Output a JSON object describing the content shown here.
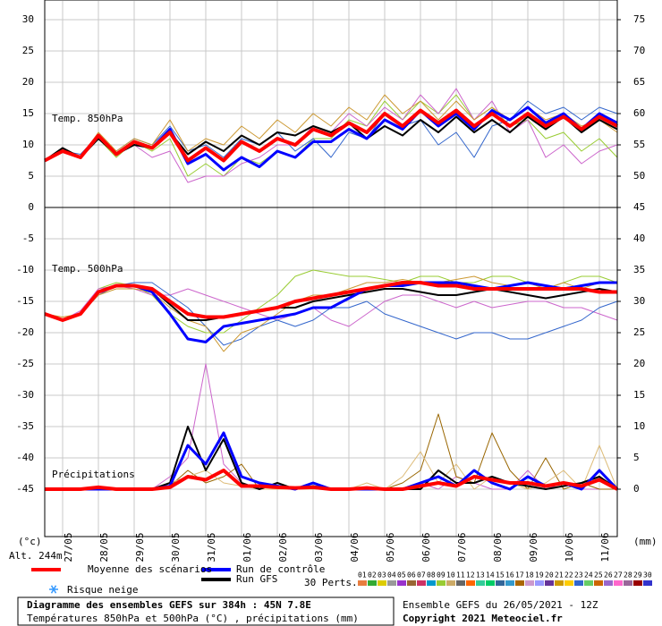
{
  "chart_data": {
    "type": "line",
    "y_unit_left": "(°c)",
    "y_unit_right": "(mm)",
    "altitude": "Alt. 244m",
    "xlim": [
      0,
      384
    ],
    "x": [
      0,
      12,
      24,
      36,
      48,
      60,
      72,
      84,
      96,
      108,
      120,
      132,
      144,
      156,
      168,
      180,
      192,
      204,
      216,
      228,
      240,
      252,
      264,
      276,
      288,
      300,
      312,
      324,
      336,
      348,
      360,
      372,
      384
    ],
    "xticks": [
      {
        "value": 12,
        "label": "27/05"
      },
      {
        "value": 36,
        "label": "28/05"
      },
      {
        "value": 60,
        "label": "29/05"
      },
      {
        "value": 84,
        "label": "30/05"
      },
      {
        "value": 108,
        "label": "31/05"
      },
      {
        "value": 132,
        "label": "01/06"
      },
      {
        "value": 156,
        "label": "02/06"
      },
      {
        "value": 180,
        "label": "03/06"
      },
      {
        "value": 204,
        "label": "04/06"
      },
      {
        "value": 228,
        "label": "05/06"
      },
      {
        "value": 252,
        "label": "06/06"
      },
      {
        "value": 276,
        "label": "07/06"
      },
      {
        "value": 300,
        "label": "08/06"
      },
      {
        "value": 324,
        "label": "09/06"
      },
      {
        "value": 348,
        "label": "10/06"
      },
      {
        "value": 372,
        "label": "11/06"
      }
    ],
    "ylim": [
      -52.5,
      33
    ],
    "yticks": [
      30,
      25,
      20,
      15,
      10,
      5,
      0,
      -5,
      -10,
      -15,
      -20,
      -25,
      -30,
      -35,
      -40,
      -45
    ],
    "y2lim": [
      -7.5,
      78
    ],
    "y2ticks": [
      75,
      70,
      65,
      60,
      55,
      50,
      45,
      40,
      35,
      30,
      25,
      20,
      15,
      10,
      5,
      0
    ],
    "grid": true,
    "panels": [
      {
        "label": "Temp. 850hPa",
        "series": [
          {
            "color": "#99cc33",
            "values": [
              7.5,
              9,
              8,
              11,
              8,
              10.5,
              9,
              11,
              5,
              7,
              5,
              8,
              7,
              9,
              8,
              11,
              11,
              14,
              13,
              17,
              14,
              17,
              15,
              18,
              14,
              16,
              13,
              14,
              11,
              12,
              9,
              11,
              8
            ]
          },
          {
            "color": "#cc66cc",
            "values": [
              7.5,
              9,
              8,
              11.5,
              8.5,
              10,
              8,
              9,
              4,
              5,
              5,
              7,
              8,
              10,
              10,
              13,
              12,
              15,
              13,
              16,
              14,
              18,
              15,
              19,
              14,
              17,
              12,
              14,
              8,
              10,
              7,
              9,
              10
            ]
          },
          {
            "color": "#3366cc",
            "values": [
              7.5,
              9,
              8.5,
              11.5,
              9,
              11,
              10,
              13,
              9,
              10,
              8,
              11,
              10,
              12,
              9,
              11,
              8,
              12,
              11,
              15,
              13,
              14,
              10,
              12,
              8,
              13,
              14,
              17,
              15,
              16,
              14,
              16,
              15
            ]
          },
          {
            "color": "#cc9933",
            "values": [
              7.5,
              9.5,
              8,
              12,
              9,
              11,
              10,
              14,
              9,
              11,
              10,
              13,
              11,
              14,
              12,
              15,
              13,
              16,
              14,
              18,
              15,
              17,
              14,
              17,
              14,
              16,
              14,
              16,
              14,
              15,
              13,
              14,
              12
            ]
          },
          {
            "name": "Run GFS",
            "color": "#000000",
            "values": [
              7.5,
              9.5,
              8,
              11,
              8.5,
              10,
              9.5,
              12,
              8.5,
              10.5,
              9,
              11.5,
              10,
              12,
              11.5,
              13,
              12,
              13.5,
              11,
              13,
              11.5,
              14,
              12,
              14.5,
              12,
              14,
              12,
              14.5,
              12.5,
              14.5,
              12,
              14,
              12.5
            ]
          },
          {
            "name": "Run de contrôle",
            "color": "#0000ff",
            "values": [
              7.5,
              9,
              8,
              11.5,
              8.5,
              10.5,
              9.5,
              12.5,
              7,
              8.5,
              6,
              8,
              6.5,
              9,
              8,
              10.5,
              10.5,
              12.5,
              11,
              14,
              12.5,
              15.5,
              13,
              15,
              12.5,
              15.5,
              14,
              16,
              13.5,
              15,
              12.5,
              15,
              13.5
            ]
          },
          {
            "name": "Moyenne des scénarios",
            "color": "#ff0000",
            "values": [
              7.5,
              9,
              8,
              11.5,
              8.5,
              10.5,
              9.5,
              12,
              7.5,
              9.5,
              7.5,
              10.5,
              9,
              11,
              10,
              12.5,
              11.5,
              13.5,
              12,
              15,
              13,
              15.5,
              13.5,
              15.5,
              13,
              15,
              13,
              15,
              13,
              14.5,
              12.5,
              14.5,
              13
            ]
          }
        ]
      },
      {
        "label": "Temp. 500hPa",
        "series": [
          {
            "color": "#99cc33",
            "values": [
              -17,
              -18,
              -17,
              -13,
              -12,
              -12.5,
              -14,
              -17,
              -19,
              -20,
              -20,
              -18,
              -16,
              -14,
              -11,
              -10,
              -10.5,
              -11,
              -11,
              -11.5,
              -12,
              -11,
              -11,
              -12,
              -12,
              -11,
              -11,
              -12,
              -13,
              -12,
              -11,
              -11,
              -12
            ]
          },
          {
            "color": "#cc66cc",
            "values": [
              -17,
              -18,
              -16.5,
              -13,
              -12.5,
              -13,
              -14,
              -14,
              -13,
              -14,
              -15,
              -16,
              -17,
              -18,
              -17,
              -16,
              -18,
              -19,
              -17,
              -15,
              -14,
              -14,
              -15,
              -16,
              -15,
              -16,
              -15.5,
              -15,
              -15,
              -16,
              -16,
              -17,
              -18
            ]
          },
          {
            "color": "#3366cc",
            "values": [
              -17,
              -18,
              -17,
              -14,
              -12.5,
              -12,
              -12,
              -14,
              -16,
              -19,
              -22,
              -21,
              -19,
              -18,
              -19,
              -18,
              -16,
              -16,
              -15,
              -17,
              -18,
              -19,
              -20,
              -21,
              -20,
              -20,
              -21,
              -21,
              -20,
              -19,
              -18,
              -16,
              -15
            ]
          },
          {
            "color": "#cc9933",
            "values": [
              -17,
              -17.5,
              -17,
              -14,
              -13,
              -13,
              -13.5,
              -16,
              -18,
              -19,
              -23,
              -20,
              -19,
              -17,
              -15,
              -14,
              -14,
              -13,
              -12,
              -12,
              -11.5,
              -12,
              -12,
              -11.5,
              -11,
              -12,
              -12.5,
              -12,
              -13,
              -12,
              -13,
              -12,
              -12
            ]
          },
          {
            "name": "Run GFS",
            "color": "#000000",
            "values": [
              -17,
              -18,
              -17,
              -13.5,
              -12.5,
              -12.5,
              -13,
              -15.5,
              -18,
              -18,
              -17.5,
              -17,
              -16.5,
              -16,
              -16,
              -15,
              -14.5,
              -14,
              -13.5,
              -13,
              -13,
              -13.5,
              -14,
              -14,
              -13.5,
              -13,
              -13.5,
              -14,
              -14.5,
              -14,
              -13.5,
              -13,
              -13.5
            ]
          },
          {
            "name": "Run de contrôle",
            "color": "#0000ff",
            "values": [
              -17,
              -18,
              -17,
              -13.5,
              -12.5,
              -12.5,
              -13.5,
              -17,
              -21,
              -21.5,
              -19,
              -18.5,
              -18,
              -17.5,
              -17,
              -16,
              -16,
              -14.5,
              -13,
              -12.5,
              -12.5,
              -12,
              -12,
              -12,
              -12.5,
              -13,
              -12.5,
              -12,
              -12.5,
              -13,
              -12.5,
              -12,
              -12
            ]
          },
          {
            "name": "Moyenne des scénarios",
            "color": "#ff0000",
            "values": [
              -17,
              -18,
              -17,
              -13.5,
              -12.5,
              -12.5,
              -13,
              -15,
              -17,
              -17.5,
              -17.5,
              -17,
              -16.5,
              -16,
              -15,
              -14.5,
              -14,
              -13.5,
              -13,
              -12.5,
              -12,
              -12,
              -12.5,
              -12.5,
              -13,
              -13,
              -13,
              -13,
              -13,
              -13,
              -13,
              -13.5,
              -13.5
            ]
          }
        ]
      },
      {
        "label": "Précipitations",
        "axis": "y2",
        "series": [
          {
            "color": "#cc66cc",
            "values": [
              0,
              0,
              0,
              0,
              0,
              0,
              0,
              2,
              5,
              20,
              4,
              1,
              0,
              0,
              0,
              0,
              0,
              0,
              0,
              0,
              0,
              1,
              0,
              2,
              1,
              0,
              0,
              3,
              0,
              1,
              0,
              0,
              0
            ]
          },
          {
            "color": "#996600",
            "values": [
              0,
              0,
              0,
              0.5,
              0,
              0,
              0,
              0.5,
              3,
              1,
              2,
              4,
              0,
              1,
              0,
              0,
              0,
              0,
              0,
              0,
              1,
              3,
              12,
              2,
              1,
              9,
              3,
              0,
              5,
              0,
              1,
              0,
              0
            ]
          },
          {
            "color": "#ddbb77",
            "values": [
              0,
              0,
              0,
              0,
              0,
              0,
              0,
              1,
              2,
              3,
              1,
              0.5,
              0,
              0,
              0,
              0,
              0,
              0,
              1,
              0,
              2,
              6,
              1,
              4,
              0,
              2,
              1,
              0,
              1,
              3,
              0,
              7,
              0
            ]
          },
          {
            "name": "Run GFS",
            "color": "#000000",
            "values": [
              0,
              0,
              0,
              0,
              0,
              0,
              0,
              1,
              10,
              3,
              8,
              1,
              0,
              1,
              0,
              0.5,
              0,
              0,
              0,
              0,
              0,
              0,
              3,
              1,
              1,
              2,
              1,
              0.5,
              0,
              0.5,
              1,
              2,
              0
            ]
          },
          {
            "name": "Run de contrôle",
            "color": "#0000ff",
            "values": [
              0,
              0,
              0,
              0,
              0,
              0,
              0,
              0.5,
              7,
              4,
              9,
              2,
              1,
              0.5,
              0,
              1,
              0,
              0,
              0,
              0,
              0,
              1,
              2,
              0.5,
              3,
              1,
              0,
              2,
              0.5,
              1,
              0,
              3,
              0
            ]
          },
          {
            "name": "Moyenne des scénarios",
            "color": "#ff0000",
            "values": [
              0,
              0,
              0,
              0.3,
              0,
              0,
              0,
              0.3,
              2,
              1.5,
              3,
              0.5,
              0.5,
              0.3,
              0.2,
              0.3,
              0,
              0,
              0.2,
              0,
              0,
              0.5,
              1,
              0.5,
              2,
              1.5,
              1,
              1,
              0.5,
              1,
              0.5,
              1.5,
              0
            ]
          }
        ]
      }
    ],
    "snow_label": "Risque neige",
    "perts_label": "30 Perts.",
    "pert_labels": [
      "01",
      "02",
      "03",
      "04",
      "05",
      "06",
      "07",
      "08",
      "09",
      "10",
      "11",
      "12",
      "13",
      "14",
      "15",
      "16",
      "17",
      "18",
      "19",
      "20",
      "21",
      "22",
      "23",
      "24",
      "25",
      "26",
      "27",
      "28",
      "29",
      "30"
    ],
    "pert_colors": [
      "#e87d3e",
      "#33aa33",
      "#ddcc00",
      "#999999",
      "#9933cc",
      "#996633",
      "#cc3366",
      "#0099cc",
      "#99cc33",
      "#ccaa66",
      "#666666",
      "#ff6600",
      "#33cc99",
      "#00cc66",
      "#336699",
      "#3399cc",
      "#aa6600",
      "#cc99cc",
      "#9999ff",
      "#663399",
      "#cc9900",
      "#ffcc00",
      "#3366cc",
      "#66cc66",
      "#cc6600",
      "#9966cc",
      "#ff66cc",
      "#996699",
      "#990000",
      "#3333cc"
    ],
    "footer_title": "Diagramme des ensembles GEFS sur 384h : 45N 7.8E",
    "footer_subtitle": "Températures 850hPa et 500hPa (°C) , précipitations (mm)",
    "run_info": "Ensemble GEFS du 26/05/2021 - 12Z",
    "copyright": "Copyright 2021 Meteociel.fr"
  }
}
